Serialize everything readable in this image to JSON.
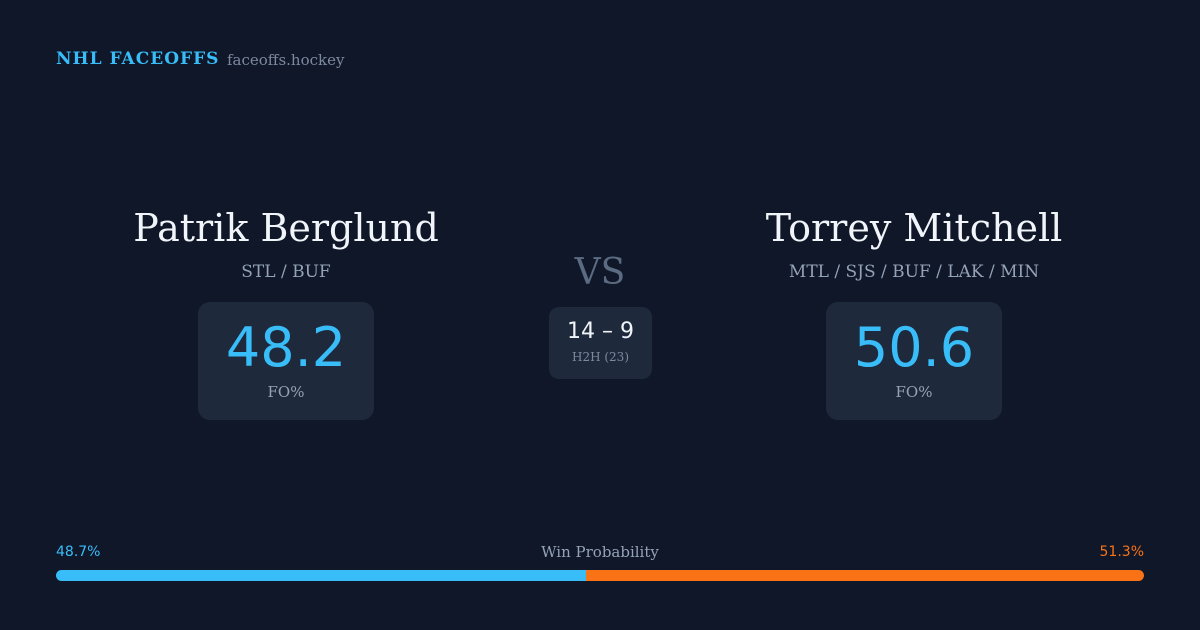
{
  "header": {
    "brand": "NHL FACEOFFS",
    "site": "faceoffs.hockey"
  },
  "players": [
    {
      "name": "Patrik Berglund",
      "teams": "STL / BUF",
      "fo_pct": 48.2,
      "fo_label": "FO%"
    },
    {
      "name": "Torrey Mitchell",
      "teams": "MTL / SJS / BUF / LAK / MIN",
      "fo_pct": 50.6,
      "fo_label": "FO%"
    }
  ],
  "versus": "VS",
  "h2h": {
    "record": "14 – 9",
    "label": "H2H (23)"
  },
  "win_probability": {
    "label": "Win Probability",
    "values": [
      48.7,
      51.3
    ],
    "value_labels": [
      "48.7%",
      "51.3%"
    ],
    "colors": [
      "#38bdf8",
      "#f97316"
    ]
  }
}
